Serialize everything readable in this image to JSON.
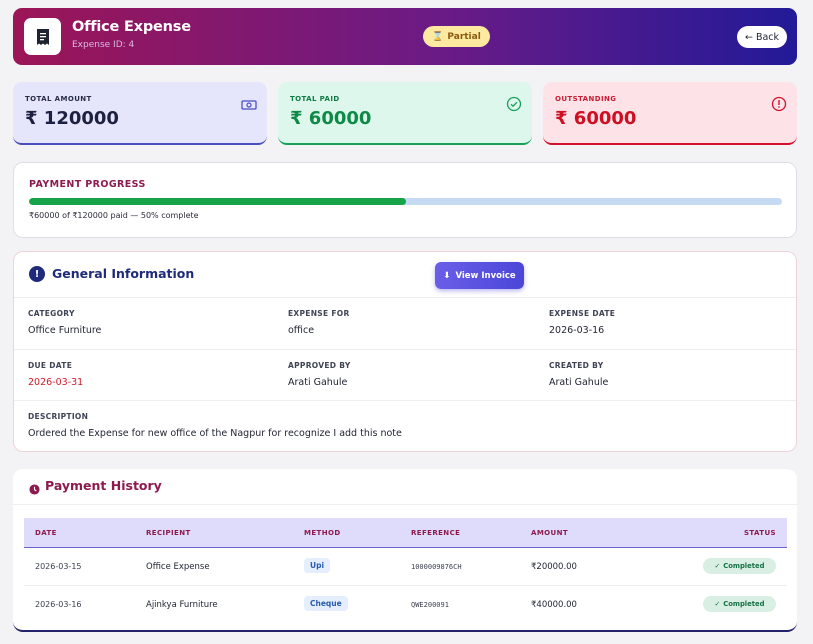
{
  "header": {
    "title": "Office Expense",
    "subtitle": "Expense ID: 4",
    "status_badge": "Partial",
    "back_label": "Back"
  },
  "stats": {
    "total": {
      "label": "TOTAL AMOUNT",
      "value": "₹ 120000"
    },
    "paid": {
      "label": "TOTAL PAID",
      "value": "₹ 60000"
    },
    "outstanding": {
      "label": "OUTSTANDING",
      "value": "₹ 60000"
    }
  },
  "progress": {
    "title": "PAYMENT PROGRESS",
    "percent": 50,
    "text": "₹60000 of ₹120000 paid — 50% complete"
  },
  "general_info": {
    "title": "General Information",
    "view_invoice_label": "View Invoice",
    "fields": {
      "category": {
        "label": "CATEGORY",
        "value": "Office Furniture"
      },
      "expense_for": {
        "label": "EXPENSE FOR",
        "value": "office"
      },
      "expense_date": {
        "label": "EXPENSE DATE",
        "value": "2026-03-16"
      },
      "due_date": {
        "label": "DUE DATE",
        "value": "2026-03-31"
      },
      "approved_by": {
        "label": "APPROVED BY",
        "value": "Arati Gahule"
      },
      "created_by": {
        "label": "CREATED BY",
        "value": "Arati Gahule"
      },
      "description": {
        "label": "DESCRIPTION",
        "value": "Ordered the Expense for new office of the Nagpur for recognize I add this note"
      }
    }
  },
  "payment_history": {
    "title": "Payment History",
    "columns": [
      "DATE",
      "RECIPIENT",
      "METHOD",
      "REFERENCE",
      "AMOUNT",
      "STATUS"
    ],
    "rows": [
      {
        "date": "2026-03-15",
        "recipient": "Office Expense",
        "method": "Upi",
        "reference": "1000009876CH",
        "amount": "₹20000.00",
        "status": "Completed"
      },
      {
        "date": "2026-03-16",
        "recipient": "Ajinkya Furniture",
        "method": "Cheque",
        "reference": "QWE200091",
        "amount": "₹40000.00",
        "status": "Completed"
      }
    ]
  },
  "colors": {
    "header_gradient_start": "#9c1557",
    "header_gradient_end": "#221a98",
    "paid_green": "#0e8a48",
    "outstanding_red": "#d00e22",
    "accent_magenta": "#8d1a4f"
  }
}
